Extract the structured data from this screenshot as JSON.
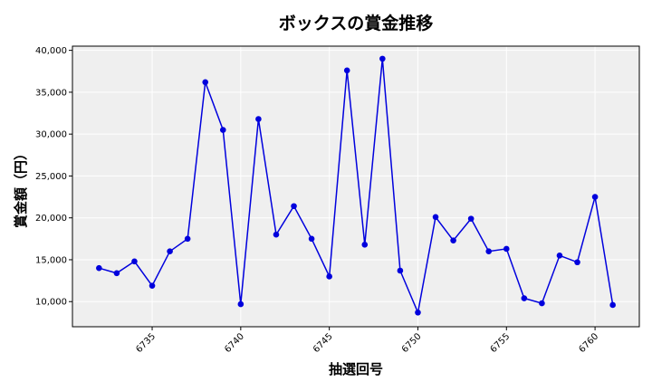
{
  "chart_data": {
    "type": "line",
    "title": "ボックスの賞金推移",
    "xlabel": "抽選回号",
    "ylabel": "賞金額（円）",
    "xlim": [
      6730.5,
      6762.5
    ],
    "ylim": [
      7000,
      40500
    ],
    "xticks": [
      6735,
      6740,
      6745,
      6750,
      6755,
      6760
    ],
    "yticks": [
      10000,
      15000,
      20000,
      25000,
      30000,
      35000,
      40000
    ],
    "ytick_labels": [
      "10,000",
      "15,000",
      "20,000",
      "25,000",
      "30,000",
      "35,000",
      "40,000"
    ],
    "grid": true,
    "series": [
      {
        "color": "#0000dd",
        "x": [
          6732,
          6733,
          6734,
          6735,
          6736,
          6737,
          6738,
          6739,
          6740,
          6741,
          6742,
          6743,
          6744,
          6745,
          6746,
          6747,
          6748,
          6749,
          6750,
          6751,
          6752,
          6753,
          6754,
          6755,
          6756,
          6757,
          6758,
          6759,
          6760,
          6761
        ],
        "y": [
          14000,
          13400,
          14800,
          11900,
          16000,
          17500,
          36200,
          30500,
          9700,
          31800,
          18000,
          21400,
          17500,
          13000,
          37600,
          16800,
          39000,
          13700,
          8700,
          20100,
          17300,
          19900,
          16000,
          16300,
          10400,
          9800,
          15500,
          14700,
          22500,
          9600
        ]
      }
    ]
  },
  "colors": {
    "plot_background": "#efefef",
    "grid": "#ffffff",
    "line": "#0000dd",
    "marker": "#0000dd"
  }
}
